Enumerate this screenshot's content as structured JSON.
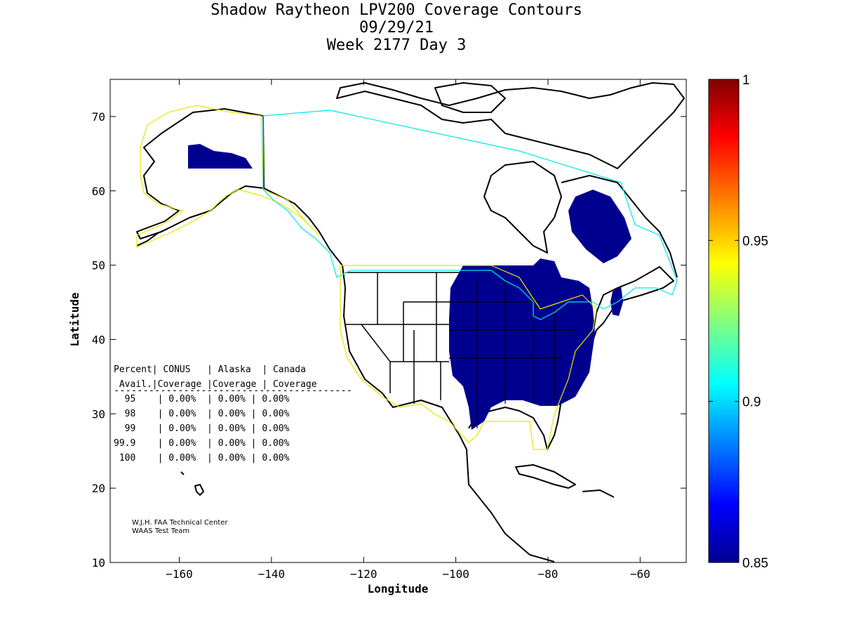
{
  "title_lines": [
    "Shadow Raytheon LPV200 Coverage Contours",
    "09/29/21",
    "Week 2177 Day 3"
  ],
  "axes": {
    "xlabel": "Longitude",
    "ylabel": "Latitude",
    "xlim": [
      -175,
      -50
    ],
    "ylim": [
      10,
      75
    ],
    "xticks": [
      -160,
      -140,
      -120,
      -100,
      -80,
      -60
    ],
    "yticks": [
      10,
      20,
      30,
      40,
      50,
      60,
      70
    ],
    "xtick_labels": [
      "−160",
      "−140",
      "−120",
      "−100",
      "−80",
      "−60"
    ],
    "ytick_labels": [
      "10",
      "20",
      "30",
      "40",
      "50",
      "60",
      "70"
    ]
  },
  "colorbar": {
    "min": 0.85,
    "max": 1,
    "tick_values": [
      1,
      0.95,
      0.9,
      0.85
    ],
    "tick_labels": [
      "1",
      "0.95",
      "0.9",
      "0.85"
    ],
    "colors": [
      "#00008f",
      "#0000ff",
      "#00ffff",
      "#ffff00",
      "#ff8000",
      "#ff0000",
      "#800000"
    ]
  },
  "coverage_table": {
    "header1": "Percent| CONUS   | Alaska  | Canada",
    "header2": " Avail.|Coverage |Coverage | Coverage",
    "separator": "-----------------------------------------",
    "rows": [
      "  95    | 0.00%  | 0.00% | 0.00%",
      "  98    | 0.00%  | 0.00% | 0.00%",
      "  99    | 0.00%  | 0.00% | 0.00%",
      "99.9    | 0.00%  | 0.00% | 0.00%",
      " 100    | 0.00%  | 0.00% | 0.00%"
    ]
  },
  "credits": [
    "W.J.H. FAA Technical Center",
    "WAAS Test Team"
  ],
  "colors": {
    "coverage_fill": "#00008f",
    "conus_boundary": "#e6e600",
    "service_boundary": "#00e5ee",
    "land_outline": "#000000"
  }
}
